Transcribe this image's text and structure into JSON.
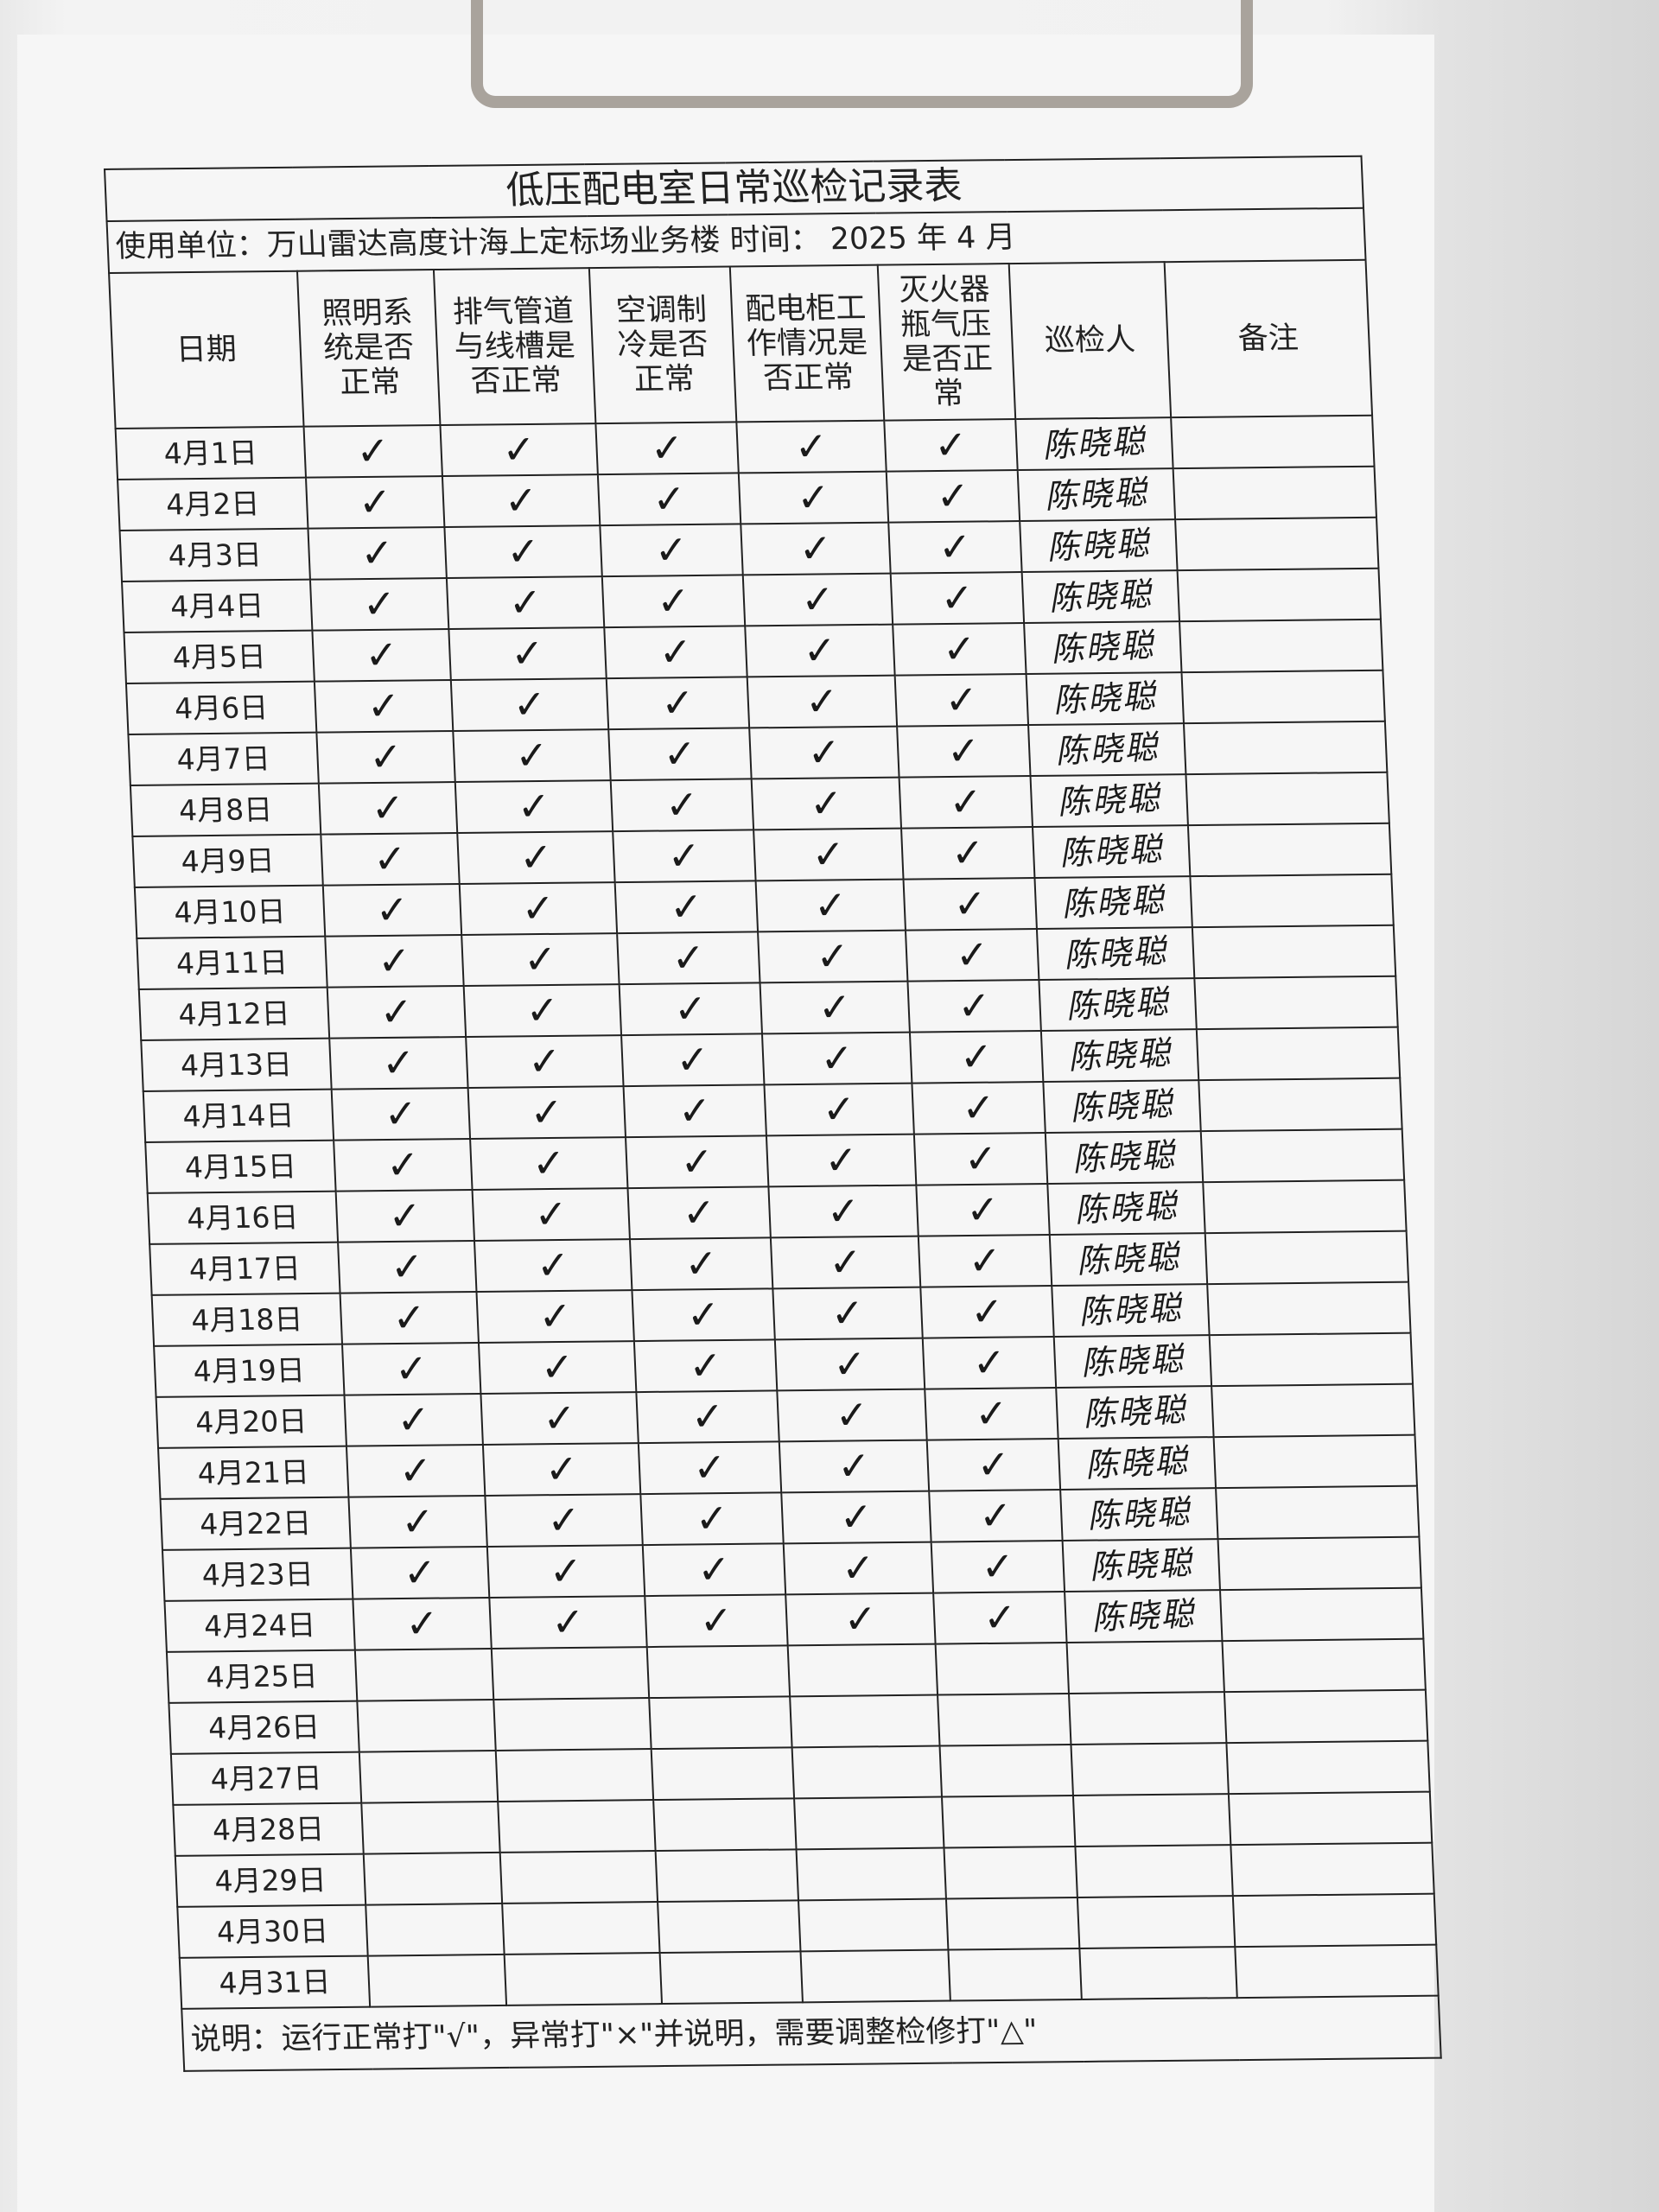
{
  "form": {
    "title": "低压配电室日常巡检记录表",
    "unit_line": "使用单位：万山雷达高度计海上定标场业务楼  时间：  2025 年 4 月",
    "headers": [
      "日期",
      "照明系统是否正常",
      "排气管道与线槽是否正常",
      "空调制冷是否正常",
      "配电柜工作情况是否正常",
      "灭火器瓶气压是否正常",
      "巡检人",
      "备注"
    ],
    "check_mark": "✓",
    "signature": "陈晓聪",
    "rows": [
      {
        "date": "4月1日",
        "checked": true
      },
      {
        "date": "4月2日",
        "checked": true
      },
      {
        "date": "4月3日",
        "checked": true
      },
      {
        "date": "4月4日",
        "checked": true
      },
      {
        "date": "4月5日",
        "checked": true
      },
      {
        "date": "4月6日",
        "checked": true
      },
      {
        "date": "4月7日",
        "checked": true
      },
      {
        "date": "4月8日",
        "checked": true
      },
      {
        "date": "4月9日",
        "checked": true
      },
      {
        "date": "4月10日",
        "checked": true
      },
      {
        "date": "4月11日",
        "checked": true
      },
      {
        "date": "4月12日",
        "checked": true
      },
      {
        "date": "4月13日",
        "checked": true
      },
      {
        "date": "4月14日",
        "checked": true
      },
      {
        "date": "4月15日",
        "checked": true
      },
      {
        "date": "4月16日",
        "checked": true
      },
      {
        "date": "4月17日",
        "checked": true
      },
      {
        "date": "4月18日",
        "checked": true
      },
      {
        "date": "4月19日",
        "checked": true
      },
      {
        "date": "4月20日",
        "checked": true
      },
      {
        "date": "4月21日",
        "checked": true
      },
      {
        "date": "4月22日",
        "checked": true
      },
      {
        "date": "4月23日",
        "checked": true
      },
      {
        "date": "4月24日",
        "checked": true
      },
      {
        "date": "4月25日",
        "checked": false
      },
      {
        "date": "4月26日",
        "checked": false
      },
      {
        "date": "4月27日",
        "checked": false
      },
      {
        "date": "4月28日",
        "checked": false
      },
      {
        "date": "4月29日",
        "checked": false
      },
      {
        "date": "4月30日",
        "checked": false
      },
      {
        "date": "4月31日",
        "checked": false
      }
    ],
    "note": "说明：运行正常打\"√\"，异常打\"×\"并说明，需要调整检修打\"△\""
  }
}
